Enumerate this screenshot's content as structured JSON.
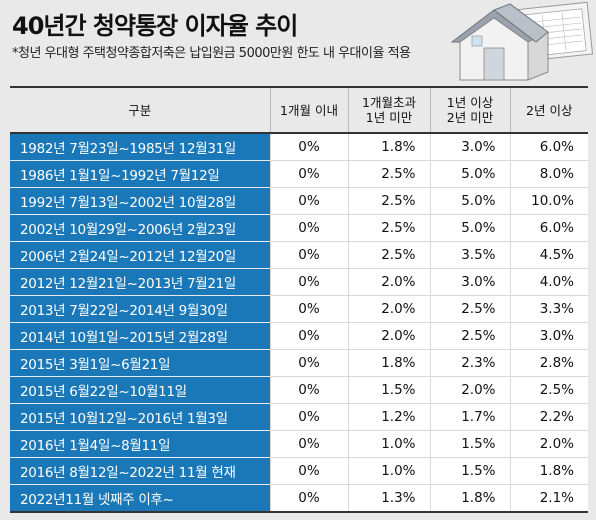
{
  "title": "40년간 청약통장 이자율 추이",
  "subtitle": "*청년 우대형 주택청약종합저축은 납입원금 5000만원 한도 내 우대이율 적용",
  "illustration_icon": "house-and-bankbook-icon",
  "table": {
    "headers": [
      "구분",
      "1개월 이내",
      "1개월초과\n1년 미만",
      "1년 이상\n2년 미만",
      "2년 이상"
    ],
    "rows": [
      {
        "period": "1982년 7월23일~1985년 12월31일",
        "r1": "0%",
        "r2": "1.8%",
        "r3": "3.0%",
        "r4": "6.0%"
      },
      {
        "period": "1986년 1월1일~1992년 7월12일",
        "r1": "0%",
        "r2": "2.5%",
        "r3": "5.0%",
        "r4": "8.0%"
      },
      {
        "period": "1992년 7월13일~2002년 10월28일",
        "r1": "0%",
        "r2": "2.5%",
        "r3": "5.0%",
        "r4": "10.0%"
      },
      {
        "period": "2002년 10월29일~2006년 2월23일",
        "r1": "0%",
        "r2": "2.5%",
        "r3": "5.0%",
        "r4": "6.0%"
      },
      {
        "period": "2006년 2월24일~2012년 12월20일",
        "r1": "0%",
        "r2": "2.5%",
        "r3": "3.5%",
        "r4": "4.5%"
      },
      {
        "period": "2012년 12월21일~2013년 7월21일",
        "r1": "0%",
        "r2": "2.0%",
        "r3": "3.0%",
        "r4": "4.0%"
      },
      {
        "period": "2013년 7월22일~2014년 9월30일",
        "r1": "0%",
        "r2": "2.0%",
        "r3": "2.5%",
        "r4": "3.3%"
      },
      {
        "period": "2014년 10월1일~2015년 2월28일",
        "r1": "0%",
        "r2": "2.0%",
        "r3": "2.5%",
        "r4": "3.0%"
      },
      {
        "period": "2015년 3월1일~6월21일",
        "r1": "0%",
        "r2": "1.8%",
        "r3": "2.3%",
        "r4": "2.8%"
      },
      {
        "period": "2015년 6월22일~10월11일",
        "r1": "0%",
        "r2": "1.5%",
        "r3": "2.0%",
        "r4": "2.5%"
      },
      {
        "period": "2015년 10월12일~2016년 1월3일",
        "r1": "0%",
        "r2": "1.2%",
        "r3": "1.7%",
        "r4": "2.2%"
      },
      {
        "period": "2016년 1월4일~8월11일",
        "r1": "0%",
        "r2": "1.0%",
        "r3": "1.5%",
        "r4": "2.0%"
      },
      {
        "period": "2016년 8월12일~2022년 11월 현재",
        "r1": "0%",
        "r2": "1.0%",
        "r3": "1.5%",
        "r4": "1.8%"
      },
      {
        "period": "2022년11월 넷째주 이후~",
        "r1": "0%",
        "r2": "1.3%",
        "r3": "1.8%",
        "r4": "2.1%"
      }
    ]
  }
}
